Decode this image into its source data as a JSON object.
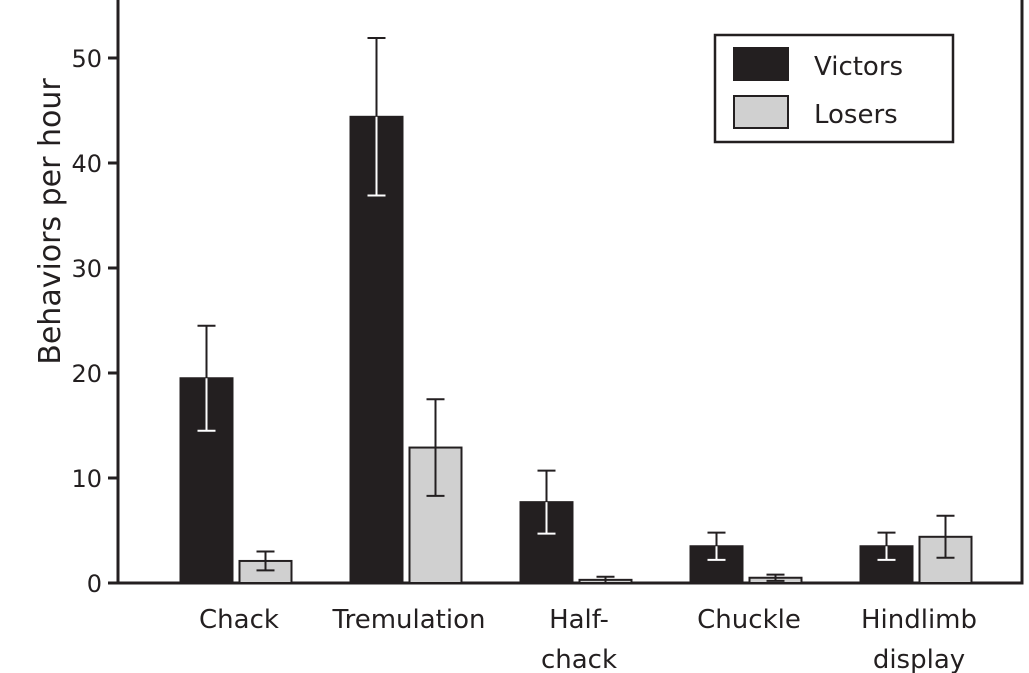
{
  "chart_data": {
    "type": "bar",
    "title": "",
    "xlabel": "",
    "ylabel": "Behaviors per hour",
    "ylim": [
      0,
      55
    ],
    "yticks": [
      0,
      10,
      20,
      30,
      40,
      50
    ],
    "grid": false,
    "legend_position": "top-right",
    "categories": [
      [
        "Chack"
      ],
      [
        "Tremulation"
      ],
      [
        "Half-",
        "chack"
      ],
      [
        "Chuckle"
      ],
      [
        "Hindlimb",
        "display"
      ]
    ],
    "series": [
      {
        "name": "Victors",
        "color": "#231f20",
        "values": [
          19.5,
          44.4,
          7.7,
          3.5,
          3.5
        ],
        "error": [
          5.0,
          7.5,
          3.0,
          1.3,
          1.3
        ]
      },
      {
        "name": "Losers",
        "color": "#d0d0d0",
        "values": [
          2.1,
          12.9,
          0.3,
          0.5,
          4.4
        ],
        "error": [
          0.9,
          4.6,
          0.3,
          0.3,
          2.0
        ]
      }
    ]
  }
}
